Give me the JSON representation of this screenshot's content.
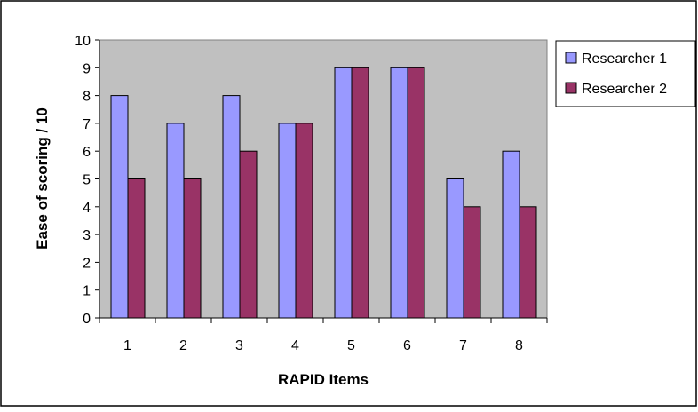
{
  "chart_data": {
    "type": "bar",
    "title": "",
    "xlabel": "RAPID Items",
    "ylabel": "Ease of scoring / 10",
    "categories": [
      "1",
      "2",
      "3",
      "4",
      "5",
      "6",
      "7",
      "8"
    ],
    "series": [
      {
        "name": "Researcher 1",
        "values": [
          8,
          7,
          8,
          7,
          9,
          9,
          5,
          6
        ],
        "color": "#9999ff"
      },
      {
        "name": "Researcher 2",
        "values": [
          5,
          5,
          6,
          7,
          9,
          9,
          4,
          4
        ],
        "color": "#993366"
      }
    ],
    "ylim": [
      0,
      10
    ],
    "yticks": [
      "0",
      "1",
      "2",
      "3",
      "4",
      "5",
      "6",
      "7",
      "8",
      "9",
      "10"
    ],
    "grid": false,
    "legend": "right",
    "plot_background": "#c0c0c0"
  }
}
